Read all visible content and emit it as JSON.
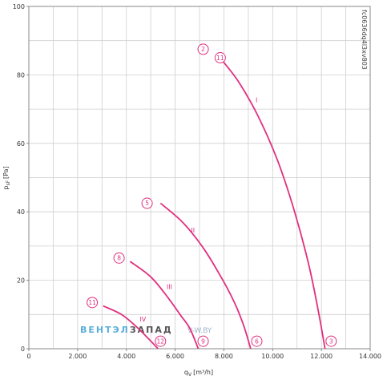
{
  "chart_data": {
    "type": "line",
    "code": "fc0636dq4l3xv803",
    "xlim": [
      0,
      14000
    ],
    "ylim": [
      0,
      100
    ],
    "x_ticks": [
      "0",
      "2.000",
      "4.000",
      "6.000",
      "8.000",
      "10.000",
      "12.000",
      "14.000"
    ],
    "x_tick_values": [
      0,
      2000,
      4000,
      6000,
      8000,
      10000,
      12000,
      14000
    ],
    "y_ticks": [
      "0",
      "20",
      "40",
      "60",
      "80",
      "100"
    ],
    "y_tick_values": [
      0,
      20,
      40,
      60,
      80,
      100
    ],
    "xlabel_main": "q",
    "xlabel_sub": "V",
    "xlabel_unit": "[m³/h]",
    "ylabel_main": "p",
    "ylabel_sub": "sF",
    "ylabel_unit": "[Pa]",
    "grid": true,
    "series": [
      {
        "name": "I",
        "points": [
          [
            7900,
            84.5
          ],
          [
            8600,
            78
          ],
          [
            9400,
            68
          ],
          [
            10200,
            55
          ],
          [
            10900,
            40
          ],
          [
            11500,
            24
          ],
          [
            11900,
            10
          ],
          [
            12150,
            0
          ]
        ]
      },
      {
        "name": "II",
        "points": [
          [
            5400,
            42.5
          ],
          [
            6300,
            37
          ],
          [
            7100,
            30
          ],
          [
            7800,
            22
          ],
          [
            8400,
            14
          ],
          [
            8800,
            7
          ],
          [
            9100,
            0
          ]
        ]
      },
      {
        "name": "III",
        "points": [
          [
            4150,
            25.5
          ],
          [
            5000,
            21
          ],
          [
            5700,
            15
          ],
          [
            6200,
            10
          ],
          [
            6600,
            6
          ],
          [
            6950,
            0
          ]
        ]
      },
      {
        "name": "IV",
        "points": [
          [
            3050,
            12.5
          ],
          [
            3800,
            10
          ],
          [
            4400,
            6.5
          ],
          [
            4900,
            3
          ],
          [
            5300,
            0
          ]
        ]
      }
    ],
    "label_positions": [
      {
        "text": "I",
        "x": 9300,
        "y": 72
      },
      {
        "text": "II",
        "x": 6650,
        "y": 34
      },
      {
        "text": "III",
        "x": 5650,
        "y": 17.5
      },
      {
        "text": "IV",
        "x": 4550,
        "y": 8
      }
    ],
    "markers": [
      {
        "label": "2",
        "x": 7150,
        "y": 87.5
      },
      {
        "label": "11",
        "x": 7850,
        "y": 85
      },
      {
        "label": "3",
        "x": 12400,
        "y": 2.2
      },
      {
        "label": "5",
        "x": 4850,
        "y": 42.5
      },
      {
        "label": "6",
        "x": 9350,
        "y": 2.2
      },
      {
        "label": "8",
        "x": 3700,
        "y": 26.5
      },
      {
        "label": "9",
        "x": 7150,
        "y": 2.2
      },
      {
        "label": "11",
        "x": 2600,
        "y": 13.5
      },
      {
        "label": "12",
        "x": 5400,
        "y": 2.2
      }
    ],
    "curve_color": "#e0307f"
  },
  "watermark": {
    "part1": "ВЕНТЭЛ",
    "part2": "ЗАПАД",
    "url": "V-W.BY",
    "color1": "#5aaed8",
    "color2": "#555555"
  }
}
